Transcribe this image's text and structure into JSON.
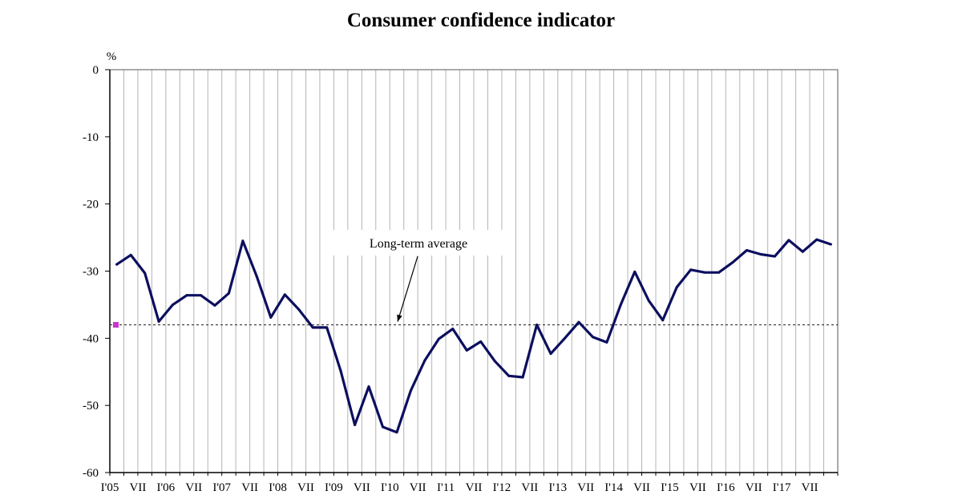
{
  "chart_data": {
    "type": "line",
    "title": "Consumer confidence indicator",
    "ylabel": "%",
    "xlabel": "",
    "ylim": [
      -60,
      0
    ],
    "yticks": [
      0,
      -10,
      -20,
      -30,
      -40,
      -50,
      -60
    ],
    "x_tick_labels": [
      "I'05",
      "VII",
      "I'06",
      "VII",
      "I'07",
      "VII",
      "I'08",
      "VII",
      "I'09",
      "VII",
      "I'10",
      "VII",
      "I'11",
      "VII",
      "I'12",
      "VII",
      "I'13",
      "VII",
      "I'14",
      "VII",
      "I'15",
      "VII",
      "I'16",
      "VII",
      "I'17",
      "VII"
    ],
    "grid": "vertical",
    "series": [
      {
        "values": [
          -29.0,
          -27.6,
          -30.3,
          -37.5,
          -35.0,
          -33.6,
          -33.6,
          -35.1,
          -33.3,
          -25.5,
          -30.8,
          -36.9,
          -33.5,
          -35.7,
          -38.4,
          -38.4,
          -44.9,
          -52.9,
          -47.2,
          -53.2,
          -54.0,
          -47.8,
          -43.3,
          -40.1,
          -38.6,
          -41.8,
          -40.5,
          -43.4,
          -45.6,
          -45.8,
          -38.0,
          -42.3,
          -40.0,
          -37.6,
          -39.8,
          -40.6,
          -35.0,
          -30.1,
          -34.4,
          -37.3,
          -32.4,
          -29.8,
          -30.2,
          -30.2,
          -28.7,
          -26.9,
          -27.5,
          -27.8,
          -25.4,
          -27.1,
          -25.3,
          -26.0
        ],
        "color": "#0c0f5e"
      }
    ],
    "reference_line": {
      "value": -38.0,
      "label": "Long-term average",
      "style": "dashed"
    },
    "start_marker": {
      "value": -38.0,
      "color": "#cc33cc"
    }
  }
}
